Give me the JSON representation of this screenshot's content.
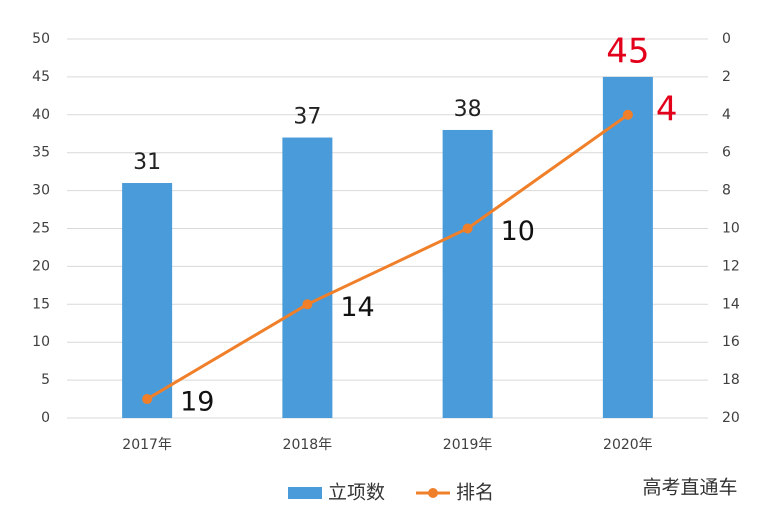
{
  "chart_data": {
    "type": "bar_line",
    "categories": [
      "2017年",
      "2018年",
      "2019年",
      "2020年"
    ],
    "series": [
      {
        "name": "立项数",
        "type": "bar",
        "color": "#4a9bd9",
        "values": [
          31,
          37,
          38,
          45
        ],
        "label_colors": [
          "#222222",
          "#222222",
          "#222222",
          "#e3001b"
        ]
      },
      {
        "name": "排名",
        "type": "line",
        "axis": "y2",
        "color": "#f07f2a",
        "values": [
          19,
          14,
          10,
          4
        ],
        "label_colors": [
          "#111111",
          "#111111",
          "#111111",
          "#e3001b"
        ]
      }
    ],
    "ylim": [
      0,
      50
    ],
    "yticks": [
      0,
      5,
      10,
      15,
      20,
      25,
      30,
      35,
      40,
      45,
      50
    ],
    "y2lim": [
      20,
      0
    ],
    "y2ticks": [
      0,
      2,
      4,
      6,
      8,
      10,
      12,
      14,
      16,
      18,
      20
    ],
    "grid": true,
    "legend": "bottom",
    "watermark": "高考直通车"
  }
}
